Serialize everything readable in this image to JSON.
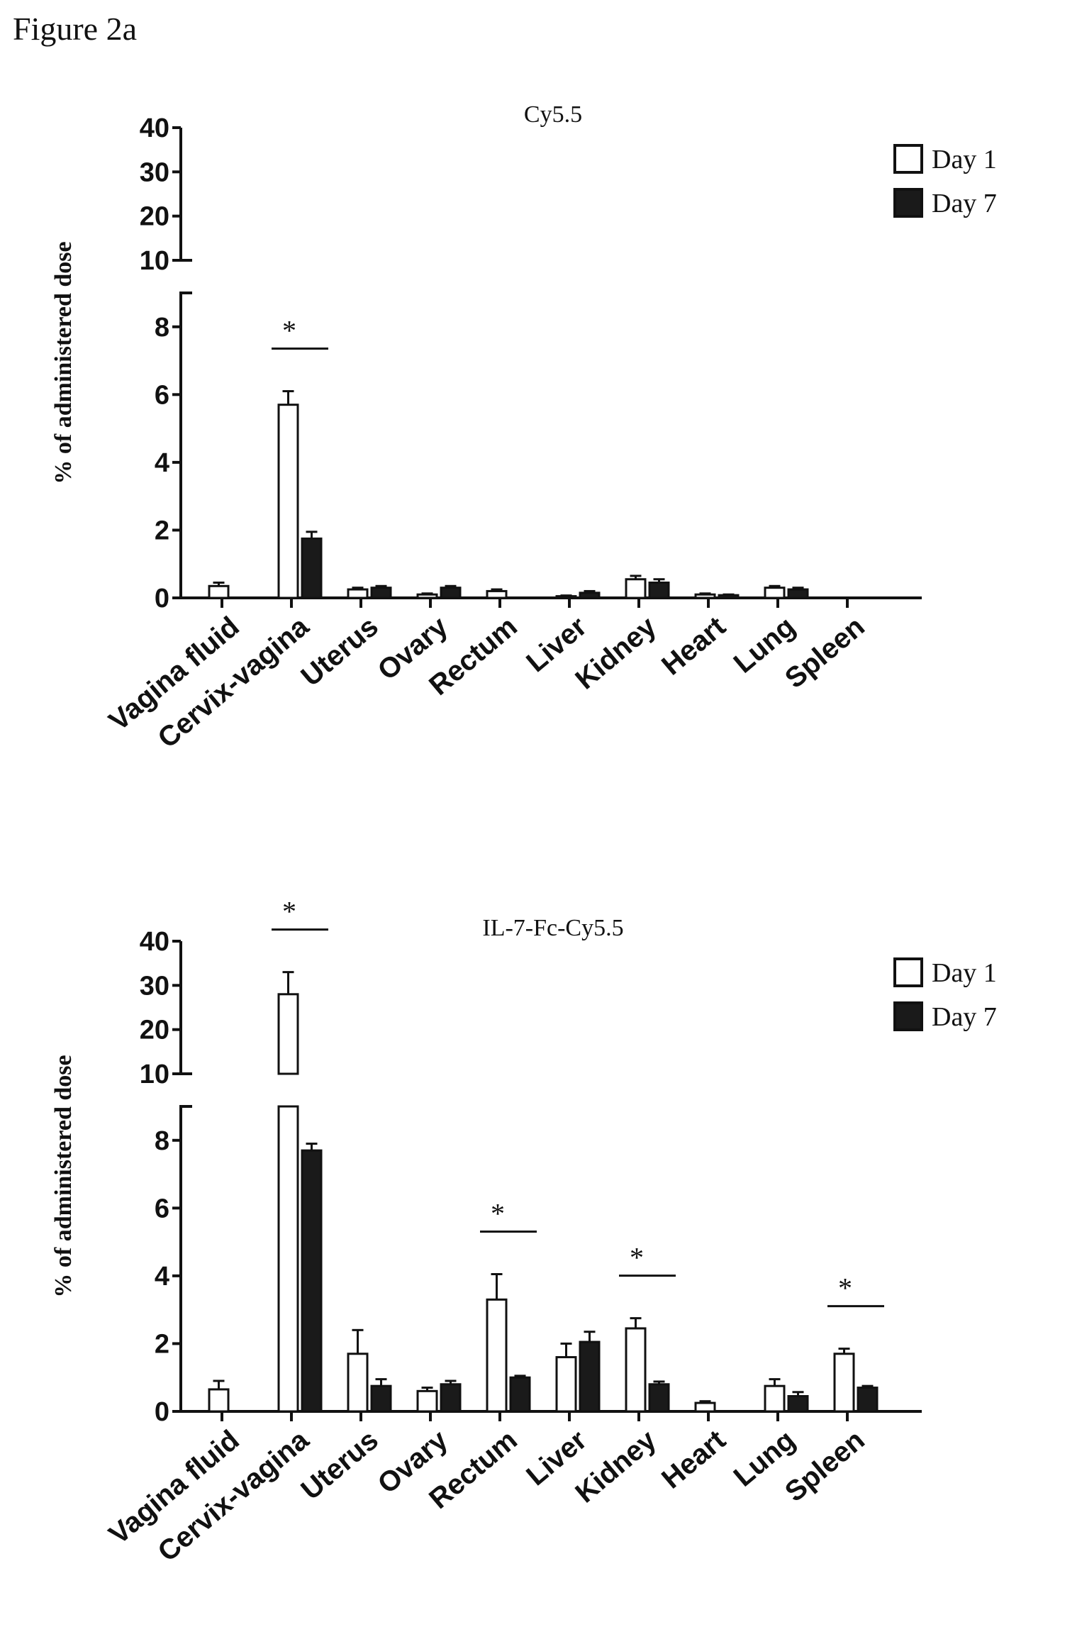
{
  "figure_label": "Figure 2a",
  "chart_data": [
    {
      "type": "bar",
      "title": "Cy5.5",
      "ylabel": "% of administered dose",
      "xlabel": "",
      "broken_axis": true,
      "lower_ylim": [
        0,
        9
      ],
      "upper_ylim": [
        10,
        40
      ],
      "lower_ticks": [
        "0",
        "2",
        "4",
        "6",
        "8"
      ],
      "upper_ticks": [
        "10",
        "20",
        "30",
        "40"
      ],
      "legend_position": "top-right",
      "categories": [
        "Vagina fluid",
        "Cervix-vagina",
        "Uterus",
        "Ovary",
        "Rectum",
        "Liver",
        "Kidney",
        "Heart",
        "Lung",
        "Spleen"
      ],
      "series": [
        {
          "name": "Day 1",
          "color": "#ffffff",
          "values": [
            0.35,
            5.7,
            0.25,
            0.1,
            0.2,
            0.05,
            0.55,
            0.1,
            0.3,
            0.0
          ],
          "errors": [
            0.1,
            0.4,
            0.05,
            0.03,
            0.05,
            0.02,
            0.1,
            0.03,
            0.05,
            0.0
          ]
        },
        {
          "name": "Day 7",
          "color": "#1a1a1a",
          "values": [
            0.0,
            1.75,
            0.3,
            0.3,
            0.0,
            0.15,
            0.45,
            0.08,
            0.25,
            0.0
          ],
          "errors": [
            0.0,
            0.2,
            0.05,
            0.05,
            0.0,
            0.05,
            0.1,
            0.02,
            0.05,
            0.0
          ]
        }
      ],
      "significance": [
        {
          "category": "Cervix-vagina",
          "label": "*"
        }
      ]
    },
    {
      "type": "bar",
      "title": "IL-7-Fc-Cy5.5",
      "ylabel": "% of administered dose",
      "xlabel": "",
      "broken_axis": true,
      "lower_ylim": [
        0,
        9
      ],
      "upper_ylim": [
        10,
        40
      ],
      "lower_ticks": [
        "0",
        "2",
        "4",
        "6",
        "8"
      ],
      "upper_ticks": [
        "10",
        "20",
        "30",
        "40"
      ],
      "legend_position": "top-right",
      "categories": [
        "Vagina fluid",
        "Cervix-vagina",
        "Uterus",
        "Ovary",
        "Rectum",
        "Liver",
        "Kidney",
        "Heart",
        "Lung",
        "Spleen"
      ],
      "series": [
        {
          "name": "Day 1",
          "color": "#ffffff",
          "values": [
            0.65,
            28,
            1.7,
            0.6,
            3.3,
            1.6,
            2.45,
            0.25,
            0.75,
            1.7
          ],
          "errors": [
            0.25,
            5,
            0.7,
            0.1,
            0.75,
            0.4,
            0.3,
            0.05,
            0.2,
            0.15
          ]
        },
        {
          "name": "Day 7",
          "color": "#1a1a1a",
          "values": [
            0.0,
            7.7,
            0.75,
            0.8,
            1.0,
            2.05,
            0.8,
            0.0,
            0.45,
            0.7
          ],
          "errors": [
            0.0,
            0.2,
            0.2,
            0.1,
            0.05,
            0.3,
            0.08,
            0.0,
            0.12,
            0.05
          ]
        }
      ],
      "significance": [
        {
          "category": "Cervix-vagina",
          "label": "*"
        },
        {
          "category": "Rectum",
          "label": "*"
        },
        {
          "category": "Kidney",
          "label": "*"
        },
        {
          "category": "Spleen",
          "label": "*"
        }
      ]
    }
  ]
}
